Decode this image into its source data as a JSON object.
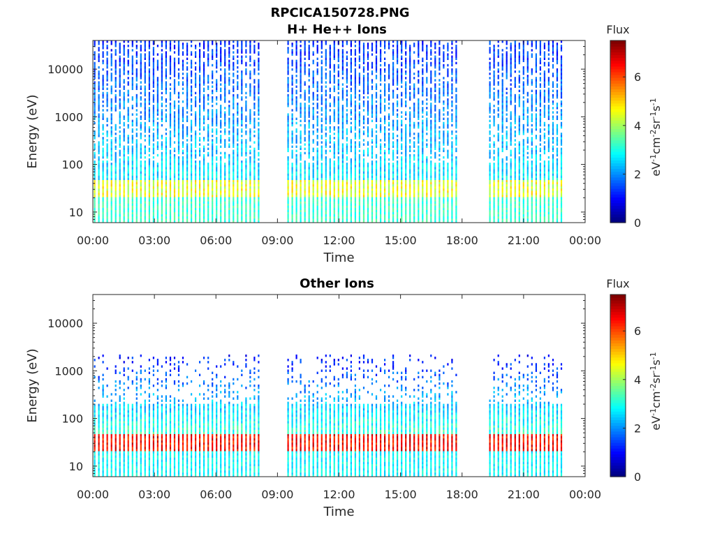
{
  "figure": {
    "title": "RPCICA150728.PNG"
  },
  "chart_data": [
    {
      "type": "heatmap",
      "title": "H+ He++ Ions",
      "xlabel": "Time",
      "ylabel": "Energy (eV)",
      "x_ticks": [
        "00:00",
        "03:00",
        "06:00",
        "09:00",
        "12:00",
        "15:00",
        "18:00",
        "21:00",
        "00:00"
      ],
      "x_range_hours": [
        0,
        24
      ],
      "y_ticks": [
        10,
        100,
        1000,
        10000
      ],
      "y_tick_labels": [
        "10",
        "100",
        "1000",
        "10000"
      ],
      "y_scale": "log",
      "y_range": [
        6,
        40000
      ],
      "colorbar": {
        "title": "Flux",
        "unit_base": "eV",
        "unit_parts": [
          "-1",
          "cm",
          "-2",
          "sr",
          "-1",
          "s",
          "-1"
        ],
        "ticks": [
          0,
          2,
          4,
          6
        ],
        "range": [
          0,
          7.5
        ],
        "colormap": "jet"
      },
      "data_gaps_hours": [
        [
          8.2,
          9.3
        ],
        [
          17.7,
          19.3
        ]
      ],
      "data_end_hour": 22.9,
      "dominant_band": {
        "energy_eV": [
          20,
          45
        ],
        "flux": 4.5
      },
      "notes_visual": "vertical streaks of flux up to ~30000 eV; low energy band near 30 eV"
    },
    {
      "type": "heatmap",
      "title": "Other Ions",
      "xlabel": "Time",
      "ylabel": "Energy (eV)",
      "x_ticks": [
        "00:00",
        "03:00",
        "06:00",
        "09:00",
        "12:00",
        "15:00",
        "18:00",
        "21:00",
        "00:00"
      ],
      "x_range_hours": [
        0,
        24
      ],
      "y_ticks": [
        10,
        100,
        1000,
        10000
      ],
      "y_tick_labels": [
        "10",
        "100",
        "1000",
        "10000"
      ],
      "y_scale": "log",
      "y_range": [
        6,
        40000
      ],
      "colorbar": {
        "title": "Flux",
        "unit_base": "eV",
        "unit_parts": [
          "-1",
          "cm",
          "-2",
          "sr",
          "-1",
          "s",
          "-1"
        ],
        "ticks": [
          0,
          2,
          4,
          6
        ],
        "range": [
          0,
          7.5
        ],
        "colormap": "jet"
      },
      "data_gaps_hours": [
        [
          8.2,
          9.3
        ],
        [
          17.7,
          19.3
        ]
      ],
      "data_end_hour": 22.9,
      "dominant_band": {
        "energy_eV": [
          20,
          45
        ],
        "flux": 6.5
      },
      "notes_visual": "strong red band near 30 eV, streaks up to ~1000 eV"
    }
  ]
}
